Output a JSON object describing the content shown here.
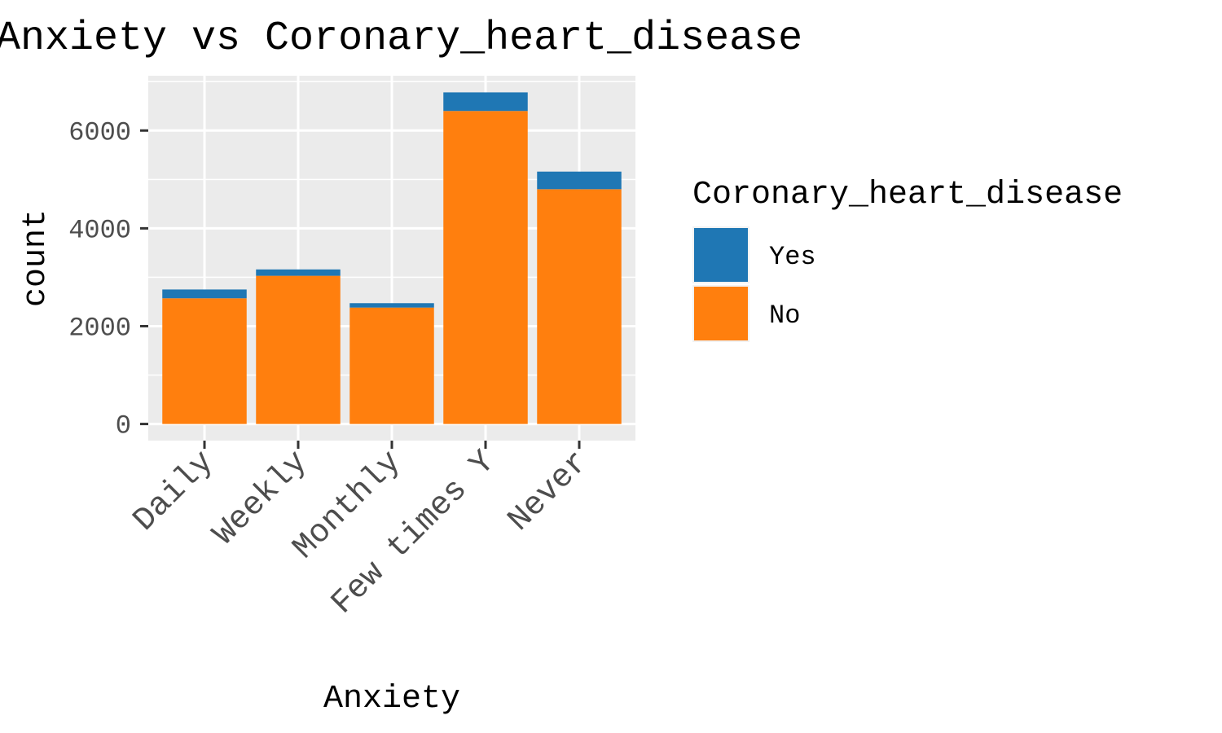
{
  "chart_data": {
    "type": "bar",
    "stacked": true,
    "title": "Anxiety vs Coronary_heart_disease",
    "xlabel": "Anxiety",
    "ylabel": "count",
    "categories": [
      "Daily",
      "Weekly",
      "Monthly",
      "Few times Y",
      "Never"
    ],
    "series": [
      {
        "name": "No",
        "values": [
          2570,
          3030,
          2380,
          6400,
          4800
        ],
        "color": "#ff7f0e"
      },
      {
        "name": "Yes",
        "values": [
          180,
          130,
          90,
          380,
          360
        ],
        "color": "#1f77b4"
      }
    ],
    "yticks": [
      0,
      2000,
      4000,
      6000
    ],
    "ylim": [
      -340,
      7120
    ],
    "grid": true,
    "panel_background": "#ebebeb",
    "legend": {
      "title": "Coronary_heart_disease",
      "position": "right",
      "order": [
        "Yes",
        "No"
      ]
    }
  }
}
